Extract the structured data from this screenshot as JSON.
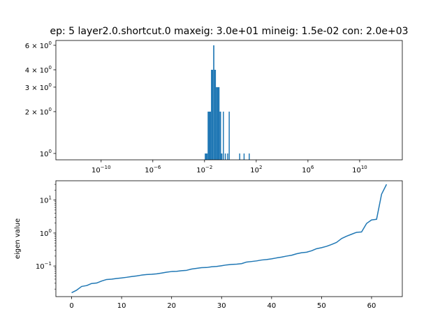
{
  "figure": {
    "title": "ep: 5 layer2.0.shortcut.0 maxeig: 3.0e+01 mineig: 1.5e-02 con: 2.0e+03"
  },
  "chart_data": [
    {
      "type": "bar",
      "subtype": "histogram",
      "x_scale": "log",
      "y_scale": "log",
      "xlim_exponent": [
        -13.5,
        13.3
      ],
      "ylim": [
        0.9,
        6.5
      ],
      "color": "#1f77b4",
      "x_ticks": [
        {
          "base": "10",
          "exp": "−10",
          "value_exp": -10
        },
        {
          "base": "10",
          "exp": "−6",
          "value_exp": -6
        },
        {
          "base": "10",
          "exp": "−2",
          "value_exp": -2
        },
        {
          "base": "10",
          "exp": "2",
          "value_exp": 2
        },
        {
          "base": "10",
          "exp": "6",
          "value_exp": 6
        },
        {
          "base": "10",
          "exp": "10",
          "value_exp": 10
        }
      ],
      "y_ticks": [
        {
          "base": "10",
          "exp": "0",
          "value": 1
        },
        {
          "base": "2 × 10",
          "exp": "0",
          "value": 2
        },
        {
          "base": "3 × 10",
          "exp": "0",
          "value": 3
        },
        {
          "base": "4 × 10",
          "exp": "0",
          "value": 4
        },
        {
          "base": "6 × 10",
          "exp": "0",
          "value": 6
        }
      ],
      "bins": [
        {
          "left_exp": -1.98,
          "right_exp": -1.76,
          "count": 1
        },
        {
          "left_exp": -1.76,
          "right_exp": -1.5,
          "count": 2
        },
        {
          "left_exp": -1.5,
          "right_exp": -1.33,
          "count": 4
        },
        {
          "left_exp": -1.33,
          "right_exp": -1.24,
          "count": 6
        },
        {
          "left_exp": -1.24,
          "right_exp": -1.12,
          "count": 4
        },
        {
          "left_exp": -1.12,
          "right_exp": -0.99,
          "count": 3
        },
        {
          "left_exp": -0.99,
          "right_exp": -0.84,
          "count": 3
        },
        {
          "left_exp": -0.84,
          "right_exp": -0.72,
          "count": 2
        },
        {
          "left_exp": -0.72,
          "right_exp": -0.62,
          "count": 1
        },
        {
          "left_exp": -0.58,
          "right_exp": -0.5,
          "count": 2
        },
        {
          "left_exp": -0.43,
          "right_exp": -0.35,
          "count": 1
        },
        {
          "left_exp": -0.25,
          "right_exp": -0.17,
          "count": 1
        },
        {
          "left_exp": -0.13,
          "right_exp": -0.05,
          "count": 2
        },
        {
          "left_exp": 0.68,
          "right_exp": 0.76,
          "count": 1
        },
        {
          "left_exp": 1.02,
          "right_exp": 1.1,
          "count": 1
        },
        {
          "left_exp": 1.42,
          "right_exp": 1.5,
          "count": 1
        }
      ]
    },
    {
      "type": "line",
      "y_scale": "log",
      "ylabel": "eigen value",
      "xlim": [
        -3.15,
        66.15
      ],
      "ylim": [
        0.0118,
        38.5
      ],
      "color": "#1f77b4",
      "x_ticks": [
        0,
        10,
        20,
        30,
        40,
        50,
        60
      ],
      "y_ticks": [
        {
          "base": "10",
          "exp": "−1",
          "value": 0.1
        },
        {
          "base": "10",
          "exp": "0",
          "value": 1
        },
        {
          "base": "10",
          "exp": "1",
          "value": 10
        }
      ],
      "x": [
        0,
        1,
        2,
        3,
        4,
        5,
        6,
        7,
        8,
        9,
        10,
        11,
        12,
        13,
        14,
        15,
        16,
        17,
        18,
        19,
        20,
        21,
        22,
        23,
        24,
        25,
        26,
        27,
        28,
        29,
        30,
        31,
        32,
        33,
        34,
        35,
        36,
        37,
        38,
        39,
        40,
        41,
        42,
        43,
        44,
        45,
        46,
        47,
        48,
        49,
        50,
        51,
        52,
        53,
        54,
        55,
        56,
        57,
        58,
        59,
        60,
        61,
        62,
        63
      ],
      "y": [
        0.0155,
        0.0185,
        0.024,
        0.0255,
        0.0295,
        0.0305,
        0.035,
        0.039,
        0.04,
        0.042,
        0.0435,
        0.0455,
        0.048,
        0.05,
        0.053,
        0.055,
        0.056,
        0.058,
        0.061,
        0.065,
        0.068,
        0.069,
        0.072,
        0.074,
        0.081,
        0.085,
        0.089,
        0.09,
        0.095,
        0.097,
        0.102,
        0.108,
        0.112,
        0.114,
        0.118,
        0.132,
        0.137,
        0.143,
        0.152,
        0.157,
        0.165,
        0.176,
        0.186,
        0.2,
        0.212,
        0.235,
        0.253,
        0.262,
        0.29,
        0.335,
        0.36,
        0.395,
        0.45,
        0.52,
        0.68,
        0.8,
        0.92,
        1.05,
        1.08,
        1.95,
        2.5,
        2.6,
        15,
        30
      ]
    }
  ]
}
